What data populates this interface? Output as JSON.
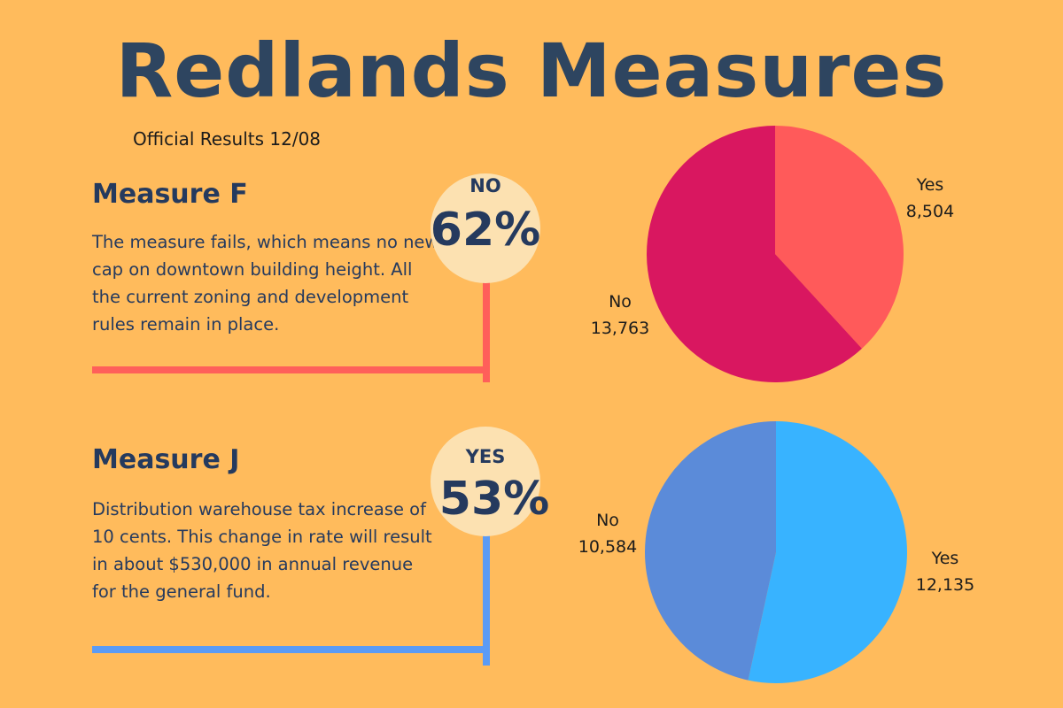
{
  "header": {
    "title": "Redlands Measures",
    "subtitle": "Official Results 12/08"
  },
  "measures": [
    {
      "name": "Measure F",
      "description": "The measure fails, which means no new cap on downtown building height. All the current zoning and development rules remain in place.",
      "result_label": "NO",
      "result_pct": "62%",
      "accent_color": "#FF5F5A"
    },
    {
      "name": "Measure J",
      "description": "Distribution warehouse tax increase of 10 cents. This change in rate will result in about $530,000 in annual revenue for the general fund.",
      "result_label": "YES",
      "result_pct": "53%",
      "accent_color": "#5B9BF5"
    }
  ],
  "chart_data": [
    {
      "type": "pie",
      "labels": [
        "Yes",
        "No"
      ],
      "values": [
        8504,
        13763
      ],
      "value_labels": [
        "8,504",
        "13,763"
      ],
      "colors": [
        "#FF5A5A",
        "#D91760"
      ]
    },
    {
      "type": "pie",
      "labels": [
        "Yes",
        "No"
      ],
      "values": [
        12135,
        10584
      ],
      "value_labels": [
        "12,135",
        "10,584"
      ],
      "colors": [
        "#38B3FF",
        "#5B8BD9"
      ]
    }
  ]
}
